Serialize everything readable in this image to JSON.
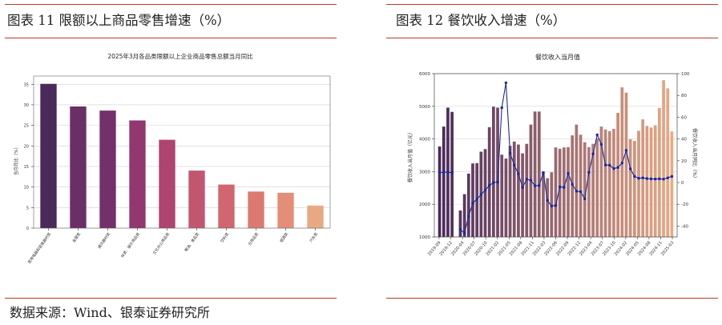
{
  "figures": {
    "left_title": "图表 11  限额以上商品零售增速（%）",
    "right_title": "图表 12    餐饮收入增速（%）"
  },
  "source": "数据来源：Wind、银泰证券研究所",
  "chart_data": [
    {
      "type": "bar",
      "title": "2025年3月各品类限额以上企业商品零售总额当月同比",
      "xlabel": "",
      "ylabel": "当月同比（%）",
      "ylim": [
        0,
        37
      ],
      "yticks": [
        0,
        5,
        10,
        15,
        20,
        25,
        30,
        35
      ],
      "categories": [
        "家用电器和音像器材类",
        "金银类",
        "通讯器材类",
        "体育、娱乐用品类",
        "文化办公用品类",
        "粮油、食品类",
        "饮料类",
        "日用品类",
        "烟酒类",
        "汽车类"
      ],
      "values": [
        35.1,
        29.6,
        28.6,
        26.2,
        21.5,
        14.0,
        10.6,
        8.9,
        8.6,
        5.5
      ],
      "colors": [
        "#4a2a5a",
        "#6a2f65",
        "#74306a",
        "#92376f",
        "#ad4570",
        "#c2566f",
        "#d0666f",
        "#dc7a72",
        "#e48e78",
        "#e9a884"
      ],
      "grid": true
    },
    {
      "type": "bar+line",
      "title": "餐饮收入当月值",
      "ylabel": "餐饮收入当月值（亿元）",
      "y2label": "餐饮收入当月同比（%）",
      "ylim": [
        1000,
        6000
      ],
      "yticks": [
        1000,
        2000,
        3000,
        4000,
        5000,
        6000
      ],
      "y2lim": [
        -50,
        100
      ],
      "y2ticks": [
        -40,
        -20,
        0,
        20,
        40,
        60,
        80,
        100
      ],
      "xtick_labels": [
        "2019-09",
        "2019-12",
        "2020-04",
        "2020-07",
        "2020-10",
        "2021-02",
        "2021-05",
        "2021-08",
        "2021-11",
        "2022-03",
        "2022-06",
        "2022-09",
        "2022-12",
        "2023-04",
        "2023-07",
        "2023-10",
        "2024-02",
        "2024-05",
        "2024-08",
        "2024-11",
        "2025-03"
      ],
      "bars": [
        3770,
        4380,
        4960,
        4830,
        null,
        1810,
        2310,
        2940,
        3250,
        3260,
        3610,
        3690,
        4360,
        4990,
        4960,
        3520,
        3400,
        3790,
        3920,
        3830,
        3560,
        3850,
        4440,
        4840,
        4840,
        3000,
        2800,
        2980,
        3740,
        3700,
        3740,
        3750,
        4110,
        4440,
        4130,
        3900,
        3750,
        3850,
        4010,
        4380,
        4290,
        4240,
        4310,
        4800,
        5580,
        5420,
        3990,
        3940,
        4250,
        4600,
        4400,
        4350,
        4420,
        4950,
        5800,
        5550,
        4230
      ],
      "line": [
        9,
        9.5,
        9.5,
        9,
        null,
        -43.1,
        -46.6,
        -31,
        -18.9,
        -15.2,
        -11,
        -7,
        -2.8,
        0,
        0.4,
        68.7,
        91.6,
        27,
        16,
        8,
        -4.5,
        3,
        2,
        -3,
        -2.8,
        9,
        -16.4,
        -21.6,
        -21.1,
        -4,
        -4.5,
        8.4,
        -1.7,
        -8,
        -8.4,
        -15,
        9.2,
        26.3,
        43.8,
        35.1,
        16.1,
        15.9,
        12.8,
        13.8,
        17.9,
        29.5,
        12.5,
        5.6,
        3.9,
        4.3,
        3.6,
        3.3,
        3.2,
        3.4,
        3.1,
        4.3,
        5.6
      ],
      "grid": true
    }
  ]
}
